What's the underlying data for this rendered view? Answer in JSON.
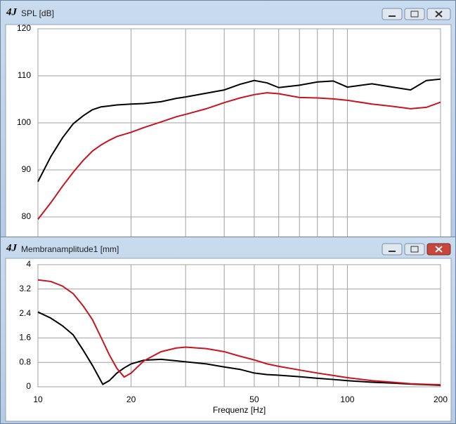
{
  "app_icon": "4J",
  "chart_data": [
    {
      "type": "line",
      "title": "SPL [dB]",
      "xscale": "log",
      "xlim": [
        10,
        200
      ],
      "ylim": [
        75,
        120
      ],
      "yticks": [
        80,
        90,
        100,
        110,
        120
      ],
      "xticks": [
        10,
        20,
        50,
        100,
        200
      ],
      "xminor": [
        30,
        40,
        60,
        70,
        80,
        90
      ],
      "grid": true,
      "x": [
        10,
        11,
        12,
        13,
        14,
        15,
        16,
        17,
        18,
        20,
        22,
        25,
        28,
        30,
        35,
        40,
        45,
        50,
        55,
        60,
        70,
        80,
        90,
        100,
        120,
        140,
        160,
        180,
        200
      ],
      "series": [
        {
          "name": "Black",
          "color": "#000000",
          "values": [
            87.5,
            92.8,
            96.8,
            99.8,
            101.5,
            102.8,
            103.4,
            103.6,
            103.8,
            104,
            104.1,
            104.5,
            105.2,
            105.5,
            106.3,
            107,
            108.2,
            109,
            108.5,
            107.5,
            108,
            108.7,
            108.9,
            107.6,
            108.3,
            107.6,
            107,
            109,
            109.3
          ]
        },
        {
          "name": "Red",
          "color": "#c8141e",
          "values": [
            79.5,
            83,
            86.5,
            89.5,
            92,
            94,
            95.3,
            96.3,
            97.1,
            98,
            99,
            100.2,
            101.3,
            101.8,
            103,
            104.3,
            105.3,
            106,
            106.4,
            106.2,
            105.4,
            105.3,
            105.1,
            104.8,
            104,
            103.5,
            103,
            103.3,
            104.4
          ]
        }
      ]
    },
    {
      "type": "line",
      "title": "Membranamplitude1 [mm]",
      "xlabel": "Frequenz [Hz]",
      "xscale": "log",
      "xlim": [
        10,
        200
      ],
      "ylim": [
        0,
        4
      ],
      "yticks": [
        0,
        0.8,
        1.6,
        2.4,
        3.2,
        4
      ],
      "xticks": [
        10,
        20,
        50,
        100,
        200
      ],
      "xminor": [
        30,
        40,
        60,
        70,
        80,
        90
      ],
      "grid": true,
      "x": [
        10,
        11,
        12,
        13,
        14,
        15,
        16.2,
        17,
        18,
        19,
        20,
        22,
        25,
        28,
        30,
        35,
        40,
        45,
        50,
        55,
        60,
        70,
        80,
        90,
        100,
        120,
        140,
        160,
        180,
        200
      ],
      "series": [
        {
          "name": "Black",
          "color": "#000000",
          "values": [
            2.45,
            2.25,
            2.0,
            1.7,
            1.2,
            0.7,
            0.08,
            0.2,
            0.45,
            0.62,
            0.75,
            0.87,
            0.9,
            0.85,
            0.82,
            0.75,
            0.65,
            0.57,
            0.45,
            0.4,
            0.38,
            0.33,
            0.28,
            0.24,
            0.2,
            0.15,
            0.12,
            0.09,
            0.07,
            0.05
          ]
        },
        {
          "name": "Red",
          "color": "#c8141e",
          "values": [
            3.5,
            3.45,
            3.3,
            3.05,
            2.65,
            2.2,
            1.5,
            1.05,
            0.6,
            0.32,
            0.45,
            0.85,
            1.15,
            1.27,
            1.3,
            1.25,
            1.15,
            1.0,
            0.88,
            0.75,
            0.67,
            0.55,
            0.45,
            0.37,
            0.3,
            0.2,
            0.15,
            0.1,
            0.08,
            0.07
          ]
        }
      ]
    }
  ]
}
